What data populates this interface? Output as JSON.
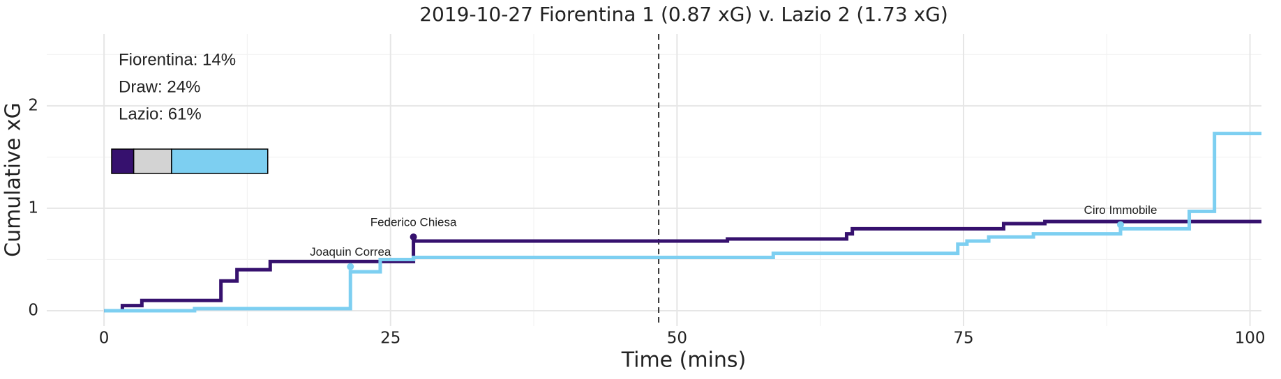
{
  "chart_data": {
    "type": "step",
    "title": "2019-10-27 Fiorentina 1 (0.87 xG) v. Lazio 2 (1.73 xG)",
    "x_label": "Time (mins)",
    "y_label": "Cumulative xG",
    "xlim": [
      -5,
      101
    ],
    "ylim": [
      -0.15,
      2.7
    ],
    "xticks": [
      0,
      25,
      50,
      75,
      100
    ],
    "yticks": [
      0,
      1,
      2
    ],
    "grid": true,
    "vline": 48.4,
    "series": [
      {
        "name": "Fiorentina",
        "color": "#36116e",
        "x": [
          0,
          1.6,
          3.3,
          10.2,
          11.6,
          14.5,
          27,
          54.4,
          64.8,
          65.3,
          78.5,
          82.1,
          101
        ],
        "values": [
          0,
          0.05,
          0.1,
          0.29,
          0.4,
          0.48,
          0.68,
          0.7,
          0.75,
          0.8,
          0.85,
          0.87,
          0.87
        ]
      },
      {
        "name": "Lazio",
        "color": "#7dcff1",
        "x": [
          0,
          7.9,
          21.5,
          24.1,
          27,
          58.4,
          74.5,
          75.3,
          77.2,
          81.1,
          88.7,
          94.7,
          96.9,
          101
        ],
        "values": [
          0,
          0.02,
          0.38,
          0.5,
          0.52,
          0.56,
          0.65,
          0.68,
          0.72,
          0.75,
          0.8,
          0.97,
          1.73,
          1.73
        ]
      }
    ],
    "annotations": [
      {
        "text": "Federico Chiesa",
        "x": 27,
        "y": 0.72,
        "color": "#36116e"
      },
      {
        "text": "Joaquin Correa",
        "x": 21.5,
        "y": 0.43,
        "color": "#7dcff1"
      },
      {
        "text": "Ciro Immobile",
        "x": 88.7,
        "y": 0.84,
        "color": "#7dcff1"
      }
    ],
    "probabilities": [
      {
        "label": "Fiorentina: 14%",
        "value": 14,
        "color": "#36116e"
      },
      {
        "label": "Draw: 24%",
        "value": 24,
        "color": "#d3d3d3"
      },
      {
        "label": "Lazio: 61%",
        "value": 61,
        "color": "#7dcff1"
      }
    ]
  }
}
